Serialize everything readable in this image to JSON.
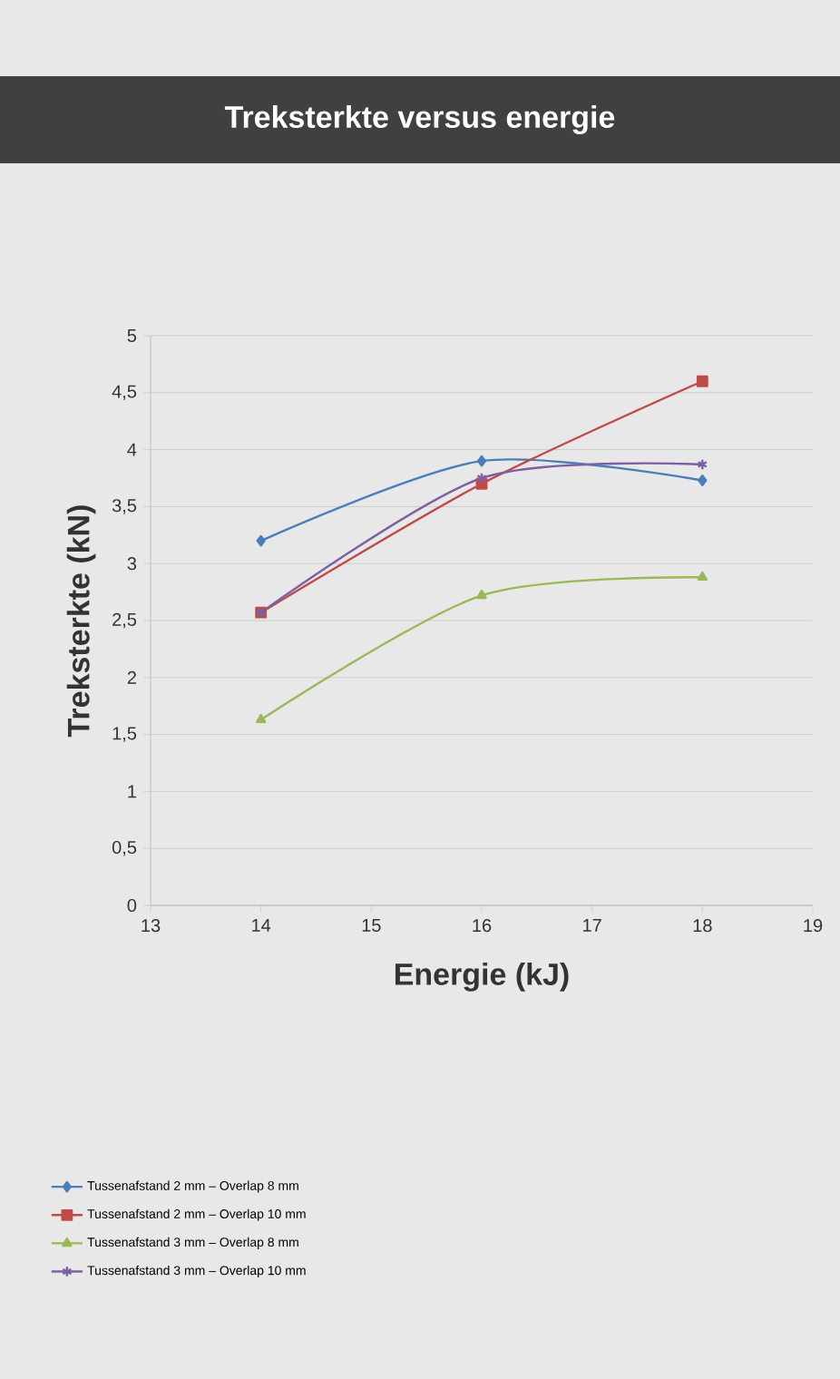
{
  "chart_data": {
    "type": "line",
    "title": "Treksterkte versus energie",
    "xlabel": "Energie (kJ)",
    "ylabel": "Treksterkte (kN)",
    "x": [
      14,
      16,
      18
    ],
    "series": [
      {
        "name": "Tussenafstand 2 mm – Overlap 8 mm",
        "color": "#4a7ebb",
        "marker": "diamond",
        "values": [
          3.2,
          3.9,
          3.73
        ]
      },
      {
        "name": "Tussenafstand 2 mm – Overlap 10 mm",
        "color": "#be4b48",
        "marker": "square",
        "values": [
          2.57,
          3.7,
          4.6
        ]
      },
      {
        "name": "Tussenafstand 3 mm – Overlap 8 mm",
        "color": "#98b954",
        "marker": "triangle",
        "values": [
          1.63,
          2.72,
          2.88
        ]
      },
      {
        "name": "Tussenafstand 3 mm – Overlap 10 mm",
        "color": "#7d60a0",
        "marker": "cross",
        "values": [
          2.57,
          3.75,
          3.87
        ]
      }
    ],
    "xlim": [
      13,
      19
    ],
    "xticks": [
      13,
      14,
      15,
      16,
      17,
      18,
      19
    ],
    "ylim": [
      0,
      5
    ],
    "yticks": [
      0,
      {
        "value": 0.5,
        "label": "0,5"
      },
      1,
      {
        "value": 1.5,
        "label": "1,5"
      },
      2,
      {
        "value": 2.5,
        "label": "2,5"
      },
      3,
      {
        "value": 3.5,
        "label": "3,5"
      },
      4,
      {
        "value": 4.5,
        "label": "4,5"
      },
      5
    ],
    "grid": "y",
    "legend": "bottom"
  }
}
